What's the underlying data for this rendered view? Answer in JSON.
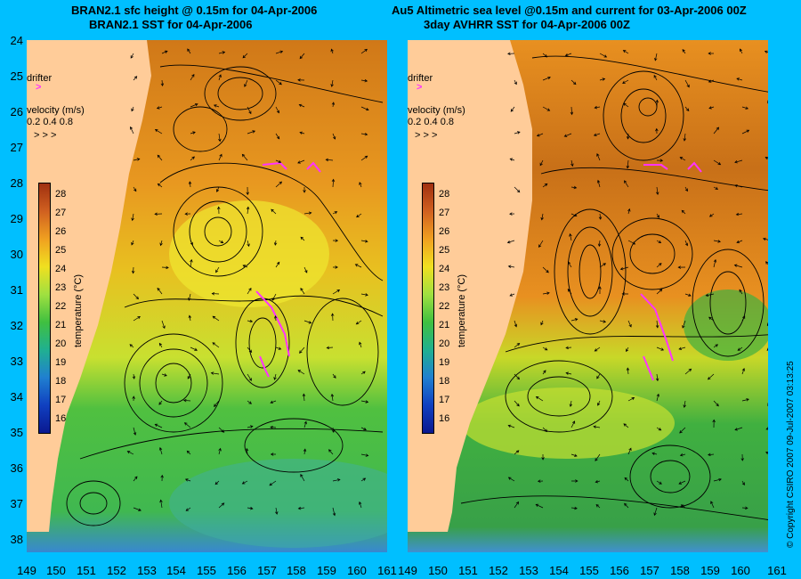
{
  "left_panel": {
    "title_line1": "BRAN2.1 sfc height @ 0.15m for 04-Apr-2006",
    "title_line2": "BRAN2.1 SST for 04-Apr-2006"
  },
  "right_panel": {
    "title_line1": "Au5 Altimetric sea level  @0.15m and current for 03-Apr-2006 00Z",
    "title_line2": "3day AVHRR SST for 04-Apr-2006 00Z"
  },
  "y_axis_ticks": [
    "24",
    "25",
    "26",
    "27",
    "28",
    "29",
    "30",
    "31",
    "32",
    "33",
    "34",
    "35",
    "36",
    "37",
    "38"
  ],
  "x_axis_ticks": [
    "149",
    "150",
    "151",
    "152",
    "153",
    "154",
    "155",
    "156",
    "157",
    "158",
    "159",
    "160",
    "161"
  ],
  "legend": {
    "drifter_label": "drifter",
    "velocity_label": "velocity (m/s)",
    "velocity_values": "0.2 0.4 0.8",
    "velocity_arrows": "> > >"
  },
  "colorbar": {
    "title": "temperature (°C)",
    "ticks": [
      "28",
      "27",
      "26",
      "25",
      "24",
      "23",
      "22",
      "21",
      "20",
      "19",
      "18",
      "17",
      "16"
    ]
  },
  "copyright": "© Copyright CSIRO 2007   09-Jul-2007 03:13:25",
  "colors": {
    "background": "#00BFFF",
    "land": "#FFCC99",
    "warm": "#E08010",
    "mid": "#F0E020",
    "cool": "#40C040",
    "cold": "#3070D0",
    "drifter": "#FF33FF"
  }
}
